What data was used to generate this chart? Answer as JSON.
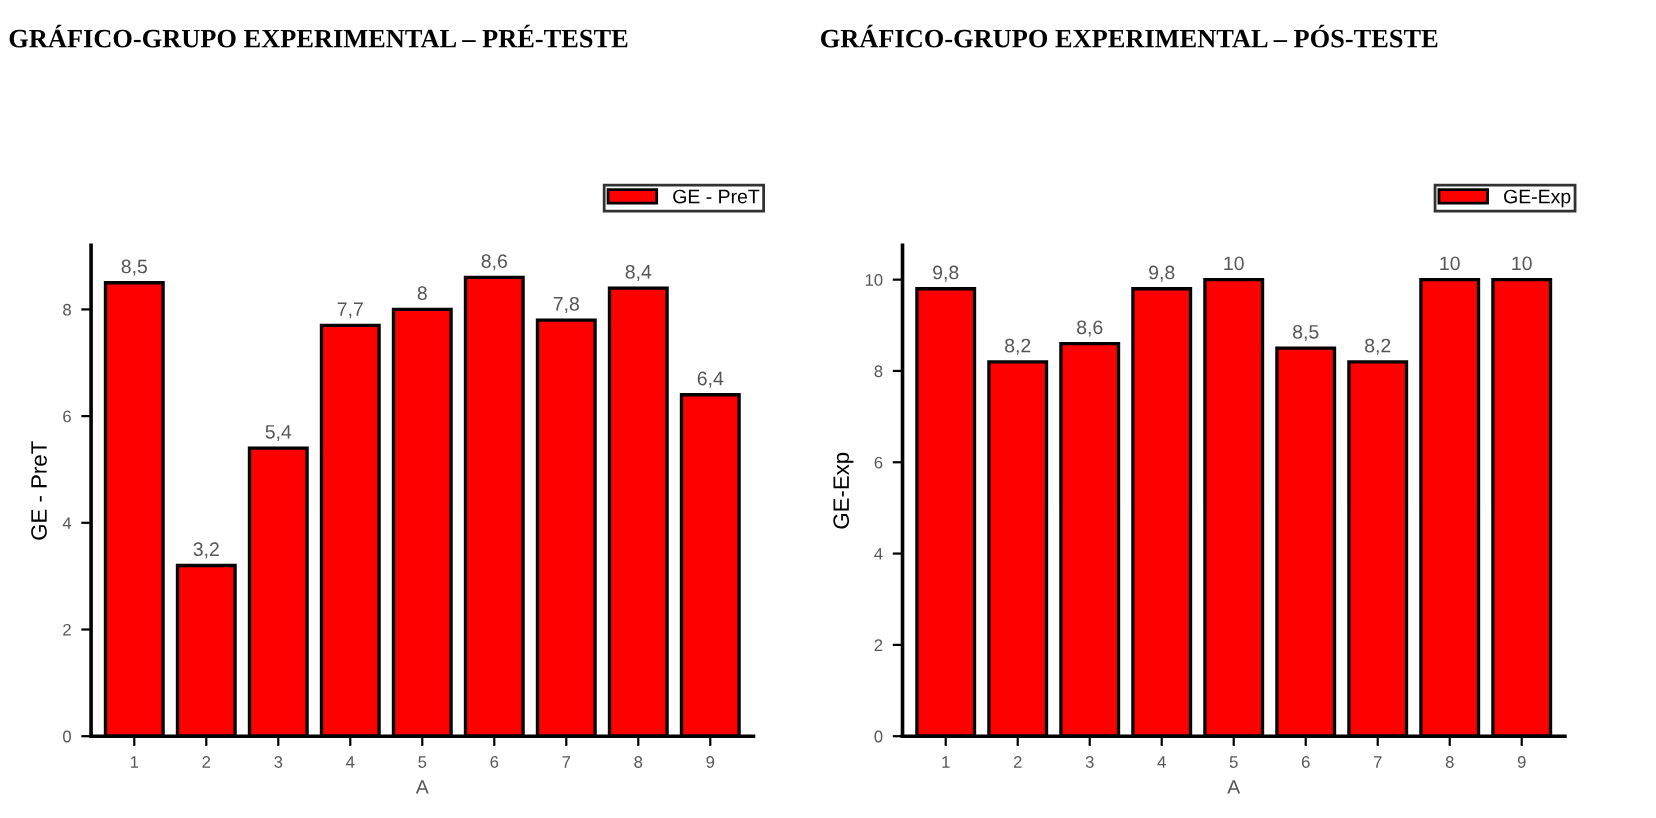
{
  "chart_data": [
    {
      "type": "bar",
      "title": "GRÁFICO-GRUPO EXPERIMENTAL – PRÉ-TESTE",
      "xlabel": "A",
      "ylabel": "GE - PreT",
      "categories": [
        "1",
        "2",
        "3",
        "4",
        "5",
        "6",
        "7",
        "8",
        "9"
      ],
      "series": [
        {
          "name": "GE - PreT",
          "color": "#ff0000",
          "values": [
            8.5,
            3.2,
            5.4,
            7.7,
            8,
            8.6,
            7.8,
            8.4,
            6.4
          ],
          "value_labels": [
            "8,5",
            "3,2",
            "5,4",
            "7,7",
            "8",
            "8,6",
            "7,8",
            "8,4",
            "6,4"
          ]
        }
      ],
      "ylim": [
        0,
        9.2
      ],
      "yticks": [
        0,
        2,
        4,
        6,
        8
      ],
      "grid": false,
      "legend": "top right"
    },
    {
      "type": "bar",
      "title": "GRÁFICO-GRUPO EXPERIMENTAL – PÓS-TESTE",
      "xlabel": "A",
      "ylabel": "GE-Exp",
      "categories": [
        "1",
        "2",
        "3",
        "4",
        "5",
        "6",
        "7",
        "8",
        "9"
      ],
      "series": [
        {
          "name": "GE-Exp",
          "color": "#ff0000",
          "values": [
            9.8,
            8.2,
            8.6,
            9.8,
            10,
            8.5,
            8.2,
            10,
            10
          ],
          "value_labels": [
            "9,8",
            "8,2",
            "8,6",
            "9,8",
            "10",
            "8,5",
            "8,2",
            "10",
            "10"
          ]
        }
      ],
      "ylim": [
        0,
        10.75
      ],
      "yticks": [
        0,
        2,
        4,
        6,
        8,
        10
      ],
      "grid": false,
      "legend": "top right"
    }
  ]
}
